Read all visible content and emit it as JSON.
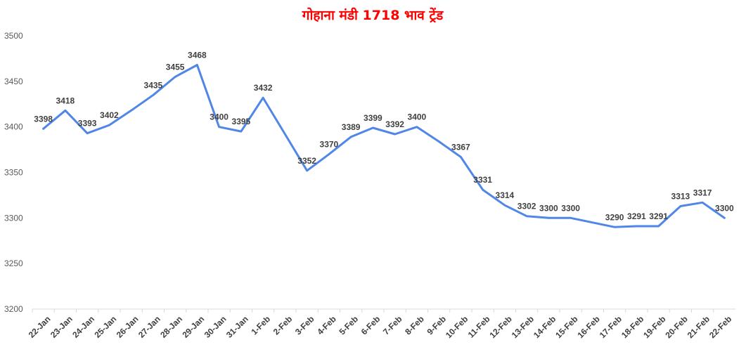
{
  "chart_data": {
    "type": "line",
    "title": "गोहाना मंडी 1718 भाव ट्रेंड",
    "xlabel": "",
    "ylabel": "",
    "ylim": [
      3200,
      3500
    ],
    "y_ticks": [
      3200,
      3250,
      3300,
      3350,
      3400,
      3450,
      3500
    ],
    "grid": false,
    "legend": "none",
    "colors": {
      "title": "#ff0000",
      "line": "#4f86e8",
      "axis": "#d9d9d9",
      "text": "#404040"
    },
    "categories": [
      "22-Jan",
      "23-Jan",
      "24-Jan",
      "25-Jan",
      "26-Jan",
      "27-Jan",
      "28-Jan",
      "29-Jan",
      "30-Jan",
      "31-Jan",
      "1-Feb",
      "2-Feb",
      "3-Feb",
      "4-Feb",
      "5-Feb",
      "6-Feb",
      "7-Feb",
      "8-Feb",
      "9-Feb",
      "10-Feb",
      "11-Feb",
      "12-Feb",
      "13-Feb",
      "14-Feb",
      "15-Feb",
      "16-Feb",
      "17-Feb",
      "18-Feb",
      "19-Feb",
      "20-Feb",
      "21-Feb",
      "22-Feb"
    ],
    "series": [
      {
        "values": [
          3398,
          3418,
          3393,
          3402,
          3418,
          3435,
          3455,
          3468,
          3400,
          3395,
          3432,
          3392,
          3352,
          3370,
          3389,
          3399,
          3392,
          3400,
          3384,
          3367,
          3331,
          3314,
          3302,
          3300,
          3300,
          3295,
          3290,
          3291,
          3291,
          3313,
          3317,
          3300
        ],
        "labels": [
          "3398",
          "3418",
          "3393",
          "3402",
          "",
          "3435",
          "3455",
          "3468",
          "3400",
          "3395",
          "3432",
          "",
          "3352",
          "3370",
          "3389",
          "3399",
          "3392",
          "3400",
          "",
          "3367",
          "3331",
          "3314",
          "3302",
          "3300",
          "3300",
          "",
          "3290",
          "3291",
          "3291",
          "3313",
          "3317",
          "3300"
        ]
      }
    ]
  }
}
